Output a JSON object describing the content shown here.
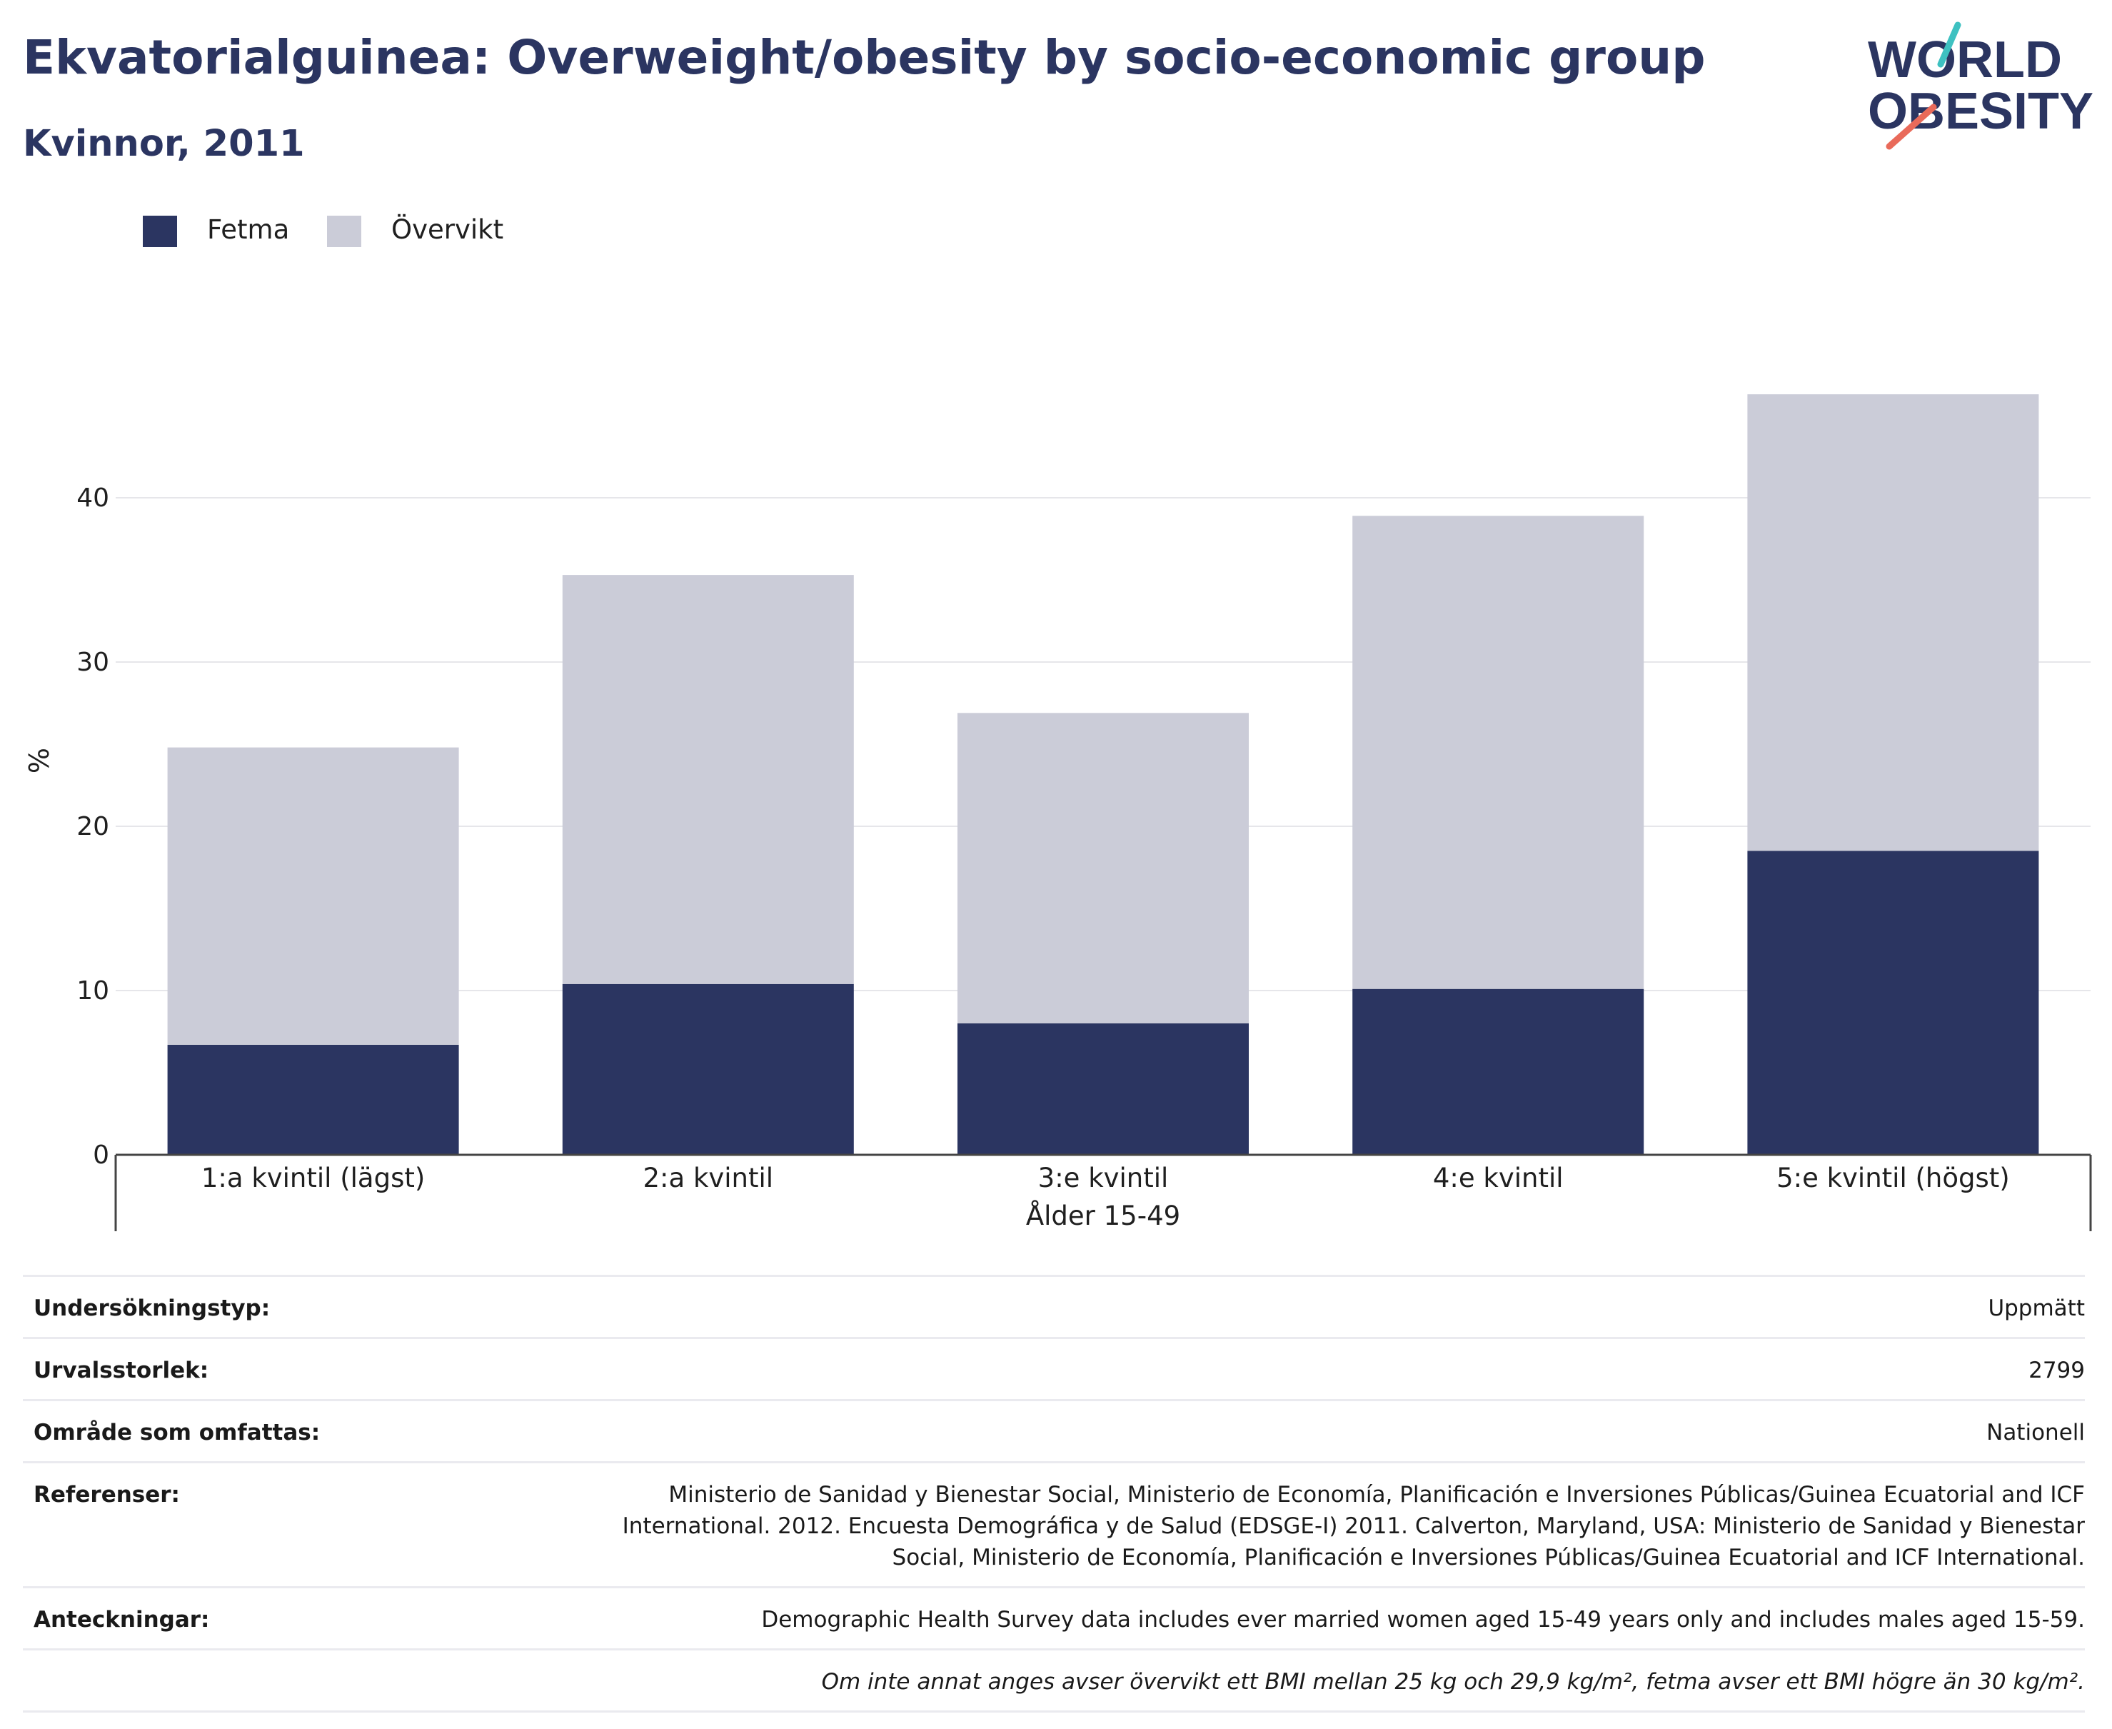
{
  "header": {
    "title": "Ekvatorialguinea: Overweight/obesity by socio-economic group",
    "subtitle": "Kvinnor, 2011"
  },
  "logo": {
    "line1": "WORLD",
    "line2": "OBESITY"
  },
  "colors": {
    "fetma": "#2b3561",
    "overvikt": "#cbccd8",
    "text": "#2b3561",
    "grid": "#e6e6ea",
    "logo_teal": "#3ec1c1",
    "logo_coral": "#e96a5a"
  },
  "chart_data": {
    "type": "bar",
    "stacked": true,
    "categories": [
      "1:a kvintil (lägst)",
      "2:a kvintil",
      "3:e kvintil",
      "4:e kvintil",
      "5:e kvintil (högst)"
    ],
    "group_label": "Ålder 15-49",
    "series": [
      {
        "name": "Fetma",
        "values": [
          6.7,
          10.4,
          8.0,
          10.1,
          18.5
        ]
      },
      {
        "name": "Övervikt",
        "values": [
          18.1,
          24.9,
          18.9,
          28.8,
          27.8
        ]
      }
    ],
    "ylabel": "%",
    "ylim": [
      0,
      47
    ],
    "yticks": [
      0,
      10,
      20,
      30,
      40
    ],
    "grid": true,
    "legend_position": "top-left"
  },
  "meta": {
    "rows": [
      {
        "label": "Undersökningstyp:",
        "value": "Uppmätt"
      },
      {
        "label": "Urvalsstorlek:",
        "value": "2799"
      },
      {
        "label": "Område som omfattas:",
        "value": "Nationell"
      },
      {
        "label": "Referenser:",
        "value": "Ministerio de Sanidad y Bienestar Social, Ministerio de Economía, Planificación e Inversiones Públicas/Guinea Ecuatorial and ICF International. 2012. Encuesta Demográfica y de Salud (EDSGE-I) 2011. Calverton, Maryland, USA: Ministerio de Sanidad y Bienestar Social, Ministerio de Economía, Planificación e Inversiones Públicas/Guinea Ecuatorial and ICF International."
      },
      {
        "label": "Anteckningar:",
        "value": "Demographic Health Survey data includes ever married women aged 15-49 years only and includes males aged 15-59."
      }
    ],
    "footnote": "Om inte annat anges avser övervikt ett BMI mellan 25 kg och 29,9 kg/m², fetma avser ett BMI högre än 30 kg/m²."
  }
}
